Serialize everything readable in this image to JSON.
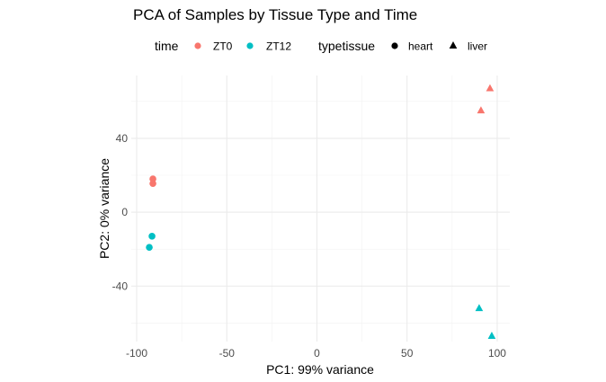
{
  "chart_data": {
    "type": "scatter",
    "title": "PCA of Samples by Tissue Type and Time",
    "xlabel": "PC1: 99% variance",
    "ylabel": "PC2: 0% variance",
    "xlim": [
      -103,
      107
    ],
    "ylim": [
      -70,
      74
    ],
    "x_ticks": [
      -100,
      -50,
      0,
      50,
      100
    ],
    "x_tick_labels": [
      "-100",
      "-50",
      "0",
      "50",
      "100"
    ],
    "y_ticks": [
      -40,
      0,
      40
    ],
    "y_tick_labels": [
      "-40",
      "0",
      "40"
    ],
    "grid": true,
    "legend_position": "top",
    "legend": {
      "color": {
        "title": "time",
        "entries": [
          {
            "label": "ZT0",
            "color": "#F8766D"
          },
          {
            "label": "ZT12",
            "color": "#00BFC4"
          }
        ]
      },
      "shape": {
        "title": "typetissue",
        "entries": [
          {
            "label": "heart",
            "shape": "circle"
          },
          {
            "label": "liver",
            "shape": "triangle"
          }
        ]
      }
    },
    "points": [
      {
        "x": -91,
        "y": 18,
        "time": "ZT0",
        "tissue": "heart"
      },
      {
        "x": -91,
        "y": 15.5,
        "time": "ZT0",
        "tissue": "heart"
      },
      {
        "x": -91.5,
        "y": -13,
        "time": "ZT12",
        "tissue": "heart"
      },
      {
        "x": -93,
        "y": -19,
        "time": "ZT12",
        "tissue": "heart"
      },
      {
        "x": 96,
        "y": 67,
        "time": "ZT0",
        "tissue": "liver"
      },
      {
        "x": 91,
        "y": 55,
        "time": "ZT0",
        "tissue": "liver"
      },
      {
        "x": 90,
        "y": -52,
        "time": "ZT12",
        "tissue": "liver"
      },
      {
        "x": 97,
        "y": -67,
        "time": "ZT12",
        "tissue": "liver"
      }
    ]
  }
}
